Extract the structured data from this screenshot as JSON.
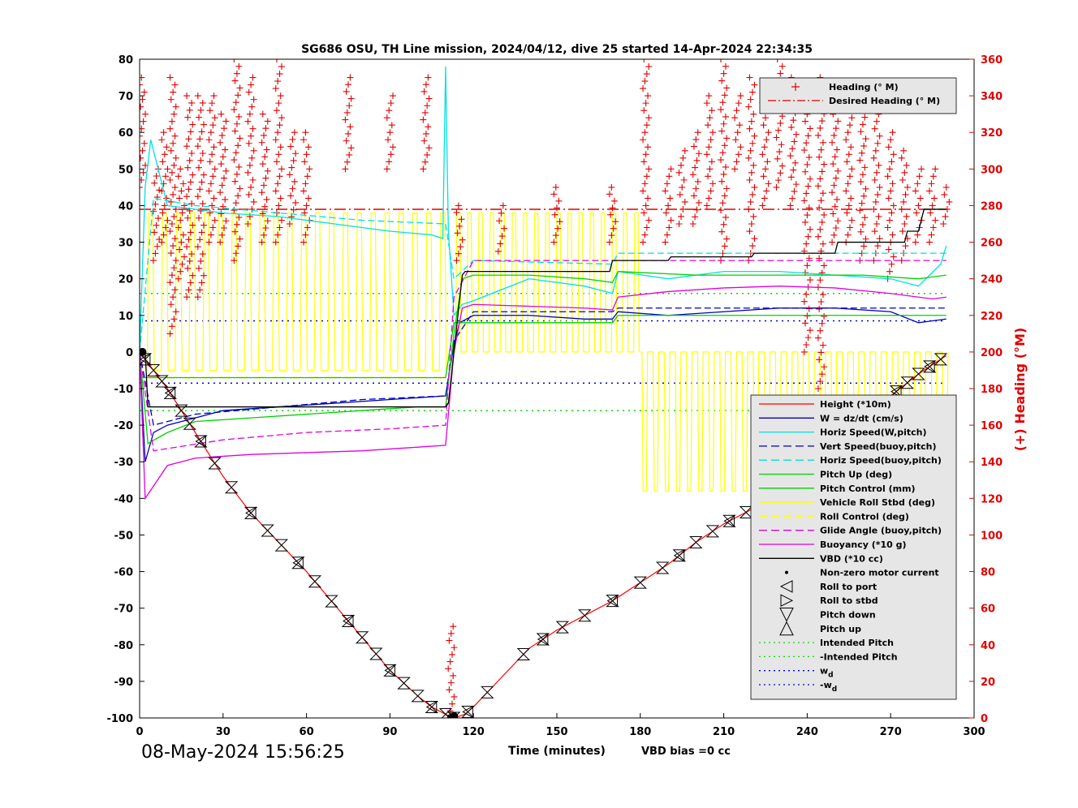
{
  "chart_data": {
    "type": "line",
    "title": "SG686 OSU, TH Line mission, 2024/04/12, dive 25 started 14-Apr-2024 22:34:35",
    "xlabel": "Time (minutes)",
    "ylabel": "",
    "y2label": "(+) Heading (°M)",
    "xlim": [
      0,
      300
    ],
    "ylim": [
      -100,
      80
    ],
    "y2lim": [
      0,
      360
    ],
    "xticks": [
      0,
      30,
      60,
      90,
      120,
      150,
      180,
      210,
      240,
      270,
      300
    ],
    "yticks": [
      80,
      70,
      60,
      50,
      40,
      30,
      20,
      10,
      0,
      -10,
      -20,
      -30,
      -40,
      -50,
      -60,
      -70,
      -80,
      -90,
      -100
    ],
    "y2ticks": [
      360,
      340,
      320,
      300,
      280,
      260,
      240,
      220,
      200,
      180,
      160,
      140,
      120,
      100,
      80,
      60,
      40,
      20,
      0
    ],
    "grid": false,
    "timestamp": "08-May-2024 15:56:25",
    "vbd_bias": "VBD bias =0 cc",
    "legend_top": {
      "placement": "top-right",
      "entries": [
        {
          "label": "Heading (° M)",
          "color": "#e00000",
          "marker": "plus"
        },
        {
          "label": "Desired Heading (° M)",
          "color": "#e00000",
          "style": "dashdot"
        }
      ]
    },
    "legend_bottom": {
      "placement": "bottom-right",
      "entries": [
        {
          "label": "Height (*10m)",
          "color": "#ff0000",
          "style": "solid"
        },
        {
          "label": "W = dz/dt (cm/s)",
          "color": "#0000c0",
          "style": "solid"
        },
        {
          "label": "Horiz Speed(W,pitch)",
          "color": "#00e0e0",
          "style": "solid"
        },
        {
          "label": "Vert Speed(buoy,pitch)",
          "color": "#0000c0",
          "style": "dash"
        },
        {
          "label": "Horiz Speed(buoy,pitch)",
          "color": "#00e0e0",
          "style": "dash"
        },
        {
          "label": "Pitch Up (deg)",
          "color": "#00d000",
          "style": "solid"
        },
        {
          "label": "Pitch Control (mm)",
          "color": "#00d000",
          "style": "solid"
        },
        {
          "label": "Vehicle Roll Stbd (deg)",
          "color": "#ffff00",
          "style": "solid"
        },
        {
          "label": "Roll Control (deg)",
          "color": "#ffff00",
          "style": "dash"
        },
        {
          "label": "Glide Angle (buoy,pitch)",
          "color": "#e000e0",
          "style": "dash"
        },
        {
          "label": "Buoyancy (*10 g)",
          "color": "#e000e0",
          "style": "solid"
        },
        {
          "label": "VBD (*10 cc)",
          "color": "#000000",
          "style": "solid"
        },
        {
          "label": "Non-zero motor current",
          "color": "#000000",
          "marker": "dot"
        },
        {
          "label": "Roll to port",
          "color": "#000000",
          "marker": "tri-left"
        },
        {
          "label": "Roll to stbd",
          "color": "#000000",
          "marker": "tri-right"
        },
        {
          "label": "Pitch down",
          "color": "#000000",
          "marker": "tri-down"
        },
        {
          "label": "Pitch up",
          "color": "#000000",
          "marker": "tri-up"
        },
        {
          "label": "Intended Pitch",
          "color": "#00e000",
          "style": "dot"
        },
        {
          "label": "-Intended Pitch",
          "color": "#00e000",
          "style": "dot"
        },
        {
          "label": "w_d",
          "color": "#0000e0",
          "style": "dot"
        },
        {
          "label": "-w_d",
          "color": "#0000e0",
          "style": "dot"
        }
      ]
    },
    "series": [
      {
        "name": "Height (*10m)",
        "color": "#ff0000",
        "x": [
          0,
          2,
          5,
          10,
          20,
          30,
          40,
          50,
          60,
          70,
          80,
          90,
          100,
          105,
          110,
          113,
          117,
          120,
          130,
          140,
          150,
          160,
          170,
          180,
          190,
          200,
          210,
          220,
          230,
          240,
          250,
          260,
          270,
          280,
          290
        ],
        "y": [
          0,
          -2,
          -5,
          -10,
          -22,
          -34,
          -44,
          -52,
          -60,
          -69,
          -78,
          -87,
          -94,
          -97,
          -99,
          -100,
          -99,
          -97,
          -89,
          -81,
          -76,
          -72,
          -68,
          -63,
          -58,
          -52,
          -47,
          -43,
          -38,
          -33,
          -26,
          -19,
          -12,
          -6,
          -1
        ]
      },
      {
        "name": "W = dz/dt (cm/s)",
        "color": "#0000c0",
        "x": [
          0,
          2,
          5,
          10,
          20,
          30,
          50,
          70,
          90,
          110,
          113,
          115,
          120,
          140,
          160,
          170,
          172,
          190,
          210,
          230,
          250,
          270,
          280,
          290
        ],
        "y": [
          0,
          -30,
          -22,
          -20,
          -18,
          -16,
          -15,
          -14,
          -13,
          -12,
          2,
          8,
          10,
          10,
          9,
          9,
          11,
          10,
          11,
          12,
          12,
          11,
          8,
          9
        ]
      },
      {
        "name": "Horiz Speed(W,pitch)",
        "color": "#00e0e0",
        "x": [
          0,
          2,
          4,
          10,
          20,
          30,
          50,
          70,
          90,
          105,
          109,
          110,
          111,
          113,
          116,
          120,
          140,
          160,
          170,
          172,
          190,
          210,
          230,
          250,
          270,
          280,
          288,
          290
        ],
        "y": [
          0,
          45,
          58,
          40,
          39,
          38,
          37,
          35,
          33,
          32,
          31,
          78,
          33,
          10,
          13,
          14,
          20,
          18,
          16,
          22,
          20,
          22,
          22,
          21,
          20,
          18,
          24,
          29
        ]
      },
      {
        "name": "Vert Speed(buoy,pitch)",
        "color": "#0000c0",
        "dash": "8,4",
        "x": [
          0,
          5,
          20,
          50,
          80,
          110,
          113,
          120,
          170,
          172,
          290
        ],
        "y": [
          0,
          -20,
          -17,
          -15,
          -13,
          -12,
          3,
          11,
          11,
          12,
          12
        ]
      },
      {
        "name": "Horiz Speed(buoy,pitch)",
        "color": "#00e0e0",
        "dash": "8,4",
        "x": [
          0,
          5,
          20,
          50,
          80,
          110,
          113,
          120,
          170,
          172,
          290
        ],
        "y": [
          0,
          42,
          40,
          38,
          36,
          35,
          20,
          25,
          24,
          27,
          27
        ]
      },
      {
        "name": "Pitch Up (deg)",
        "color": "#00d000",
        "x": [
          0,
          3,
          10,
          20,
          40,
          60,
          80,
          100,
          110,
          113,
          116,
          120,
          140,
          160,
          170,
          172,
          200,
          230,
          260,
          280,
          290
        ],
        "y": [
          0,
          -25,
          -22,
          -19,
          -18,
          -17,
          -16,
          -15,
          -15,
          5,
          20,
          21,
          21,
          20,
          19,
          22,
          21,
          21,
          21,
          20,
          21
        ]
      },
      {
        "name": "Pitch Control (mm)",
        "color": "#00d000",
        "x": [
          0,
          110,
          113,
          120,
          170,
          172,
          290
        ],
        "y": [
          -7,
          -7,
          8,
          8,
          8,
          10,
          10
        ]
      },
      {
        "name": "Glide Angle (buoy,pitch)",
        "color": "#e000e0",
        "dash": "8,4",
        "x": [
          0,
          5,
          30,
          60,
          90,
          110,
          113,
          120,
          170,
          172,
          290
        ],
        "y": [
          0,
          -27,
          -24,
          -22,
          -21,
          -20,
          15,
          25,
          25,
          25,
          25
        ]
      },
      {
        "name": "Buoyancy (*10 g)",
        "color": "#e000e0",
        "x": [
          0,
          2,
          10,
          20,
          40,
          60,
          80,
          100,
          110,
          113,
          116,
          120,
          140,
          160,
          170,
          172,
          190,
          210,
          230,
          250,
          270,
          285,
          290
        ],
        "y": [
          0,
          -40,
          -31,
          -29,
          -28,
          -27.5,
          -27,
          -26,
          -25.5,
          0,
          12,
          13,
          12.5,
          12,
          11.5,
          15,
          16.5,
          17.5,
          18,
          17.5,
          16,
          14.5,
          15
        ]
      },
      {
        "name": "VBD (*10 cc)",
        "color": "#000000",
        "x": [
          0,
          2,
          3,
          20,
          40,
          60,
          80,
          100,
          110,
          111,
          116,
          117,
          169,
          170,
          190,
          191,
          220,
          221,
          250,
          251,
          275,
          276,
          280,
          282,
          290
        ],
        "y": [
          0,
          0,
          -15,
          -15,
          -15,
          -15,
          -15,
          -15,
          -15,
          -14,
          21,
          22,
          22,
          25,
          25,
          26,
          26,
          27,
          27,
          30,
          30,
          33,
          33,
          39,
          39
        ]
      }
    ],
    "reference_lines": [
      {
        "name": "Intended Pitch",
        "y": 16,
        "color": "#00e000"
      },
      {
        "name": "-Intended Pitch",
        "y": -16,
        "color": "#00e000"
      },
      {
        "name": "w_d",
        "y": 8.5,
        "color": "#0000e0"
      },
      {
        "name": "-w_d",
        "y": -8.5,
        "color": "#0000e0"
      },
      {
        "name": "Desired Heading (° M)",
        "y2": 278,
        "color": "#e00000"
      }
    ],
    "roll_series": {
      "name": "Vehicle Roll Stbd (deg)",
      "color": "#ffff00",
      "segments": [
        {
          "x_start": 2,
          "x_end": 110,
          "base": -5,
          "peak": 38,
          "period": 5
        },
        {
          "x_start": 113,
          "x_end": 180,
          "base": 0,
          "peak": 38,
          "period": 4
        },
        {
          "x_start": 180,
          "x_end": 290,
          "base": 0,
          "peak": -38,
          "period": 4
        }
      ]
    },
    "roll_control": {
      "name": "Roll Control (deg)",
      "color": "#ffff00",
      "x": [
        3,
        110
      ],
      "y": -7
    },
    "heading": {
      "name": "Heading (° M)",
      "color": "#e00000",
      "clusters": [
        {
          "x": 1,
          "y2_range": [
            290,
            350
          ]
        },
        {
          "x": 6,
          "y2_range": [
            250,
            300
          ]
        },
        {
          "x": 9,
          "y2_range": [
            260,
            320
          ]
        },
        {
          "x": 12,
          "y2_range": [
            210,
            350
          ]
        },
        {
          "x": 15,
          "y2_range": [
            240,
            300
          ]
        },
        {
          "x": 18,
          "y2_range": [
            230,
            340
          ]
        },
        {
          "x": 22,
          "y2_range": [
            230,
            340
          ]
        },
        {
          "x": 26,
          "y2_range": [
            260,
            340
          ]
        },
        {
          "x": 30,
          "y2_range": [
            260,
            330
          ]
        },
        {
          "x": 35,
          "y2_range": [
            250,
            360
          ]
        },
        {
          "x": 40,
          "y2_range": [
            270,
            350
          ]
        },
        {
          "x": 45,
          "y2_range": [
            260,
            330
          ]
        },
        {
          "x": 50,
          "y2_range": [
            260,
            360
          ]
        },
        {
          "x": 55,
          "y2_range": [
            270,
            320
          ]
        },
        {
          "x": 60,
          "y2_range": [
            260,
            320
          ]
        },
        {
          "x": 75,
          "y2_range": [
            300,
            350
          ]
        },
        {
          "x": 90,
          "y2_range": [
            300,
            340
          ]
        },
        {
          "x": 103,
          "y2_range": [
            300,
            350
          ]
        },
        {
          "x": 112,
          "y2_range": [
            0,
            50
          ]
        },
        {
          "x": 115,
          "y2_range": [
            250,
            280
          ]
        },
        {
          "x": 130,
          "y2_range": [
            255,
            280
          ]
        },
        {
          "x": 150,
          "y2_range": [
            260,
            290
          ]
        },
        {
          "x": 170,
          "y2_range": [
            260,
            290
          ]
        },
        {
          "x": 182,
          "y2_range": [
            260,
            360
          ]
        },
        {
          "x": 190,
          "y2_range": [
            260,
            300
          ]
        },
        {
          "x": 195,
          "y2_range": [
            270,
            310
          ]
        },
        {
          "x": 200,
          "y2_range": [
            270,
            320
          ]
        },
        {
          "x": 205,
          "y2_range": [
            280,
            340
          ]
        },
        {
          "x": 210,
          "y2_range": [
            250,
            360
          ]
        },
        {
          "x": 215,
          "y2_range": [
            300,
            340
          ]
        },
        {
          "x": 220,
          "y2_range": [
            250,
            350
          ]
        },
        {
          "x": 225,
          "y2_range": [
            280,
            340
          ]
        },
        {
          "x": 230,
          "y2_range": [
            290,
            360
          ]
        },
        {
          "x": 235,
          "y2_range": [
            280,
            350
          ]
        },
        {
          "x": 240,
          "y2_range": [
            200,
            330
          ]
        },
        {
          "x": 245,
          "y2_range": [
            180,
            350
          ]
        },
        {
          "x": 250,
          "y2_range": [
            260,
            330
          ]
        },
        {
          "x": 255,
          "y2_range": [
            260,
            340
          ]
        },
        {
          "x": 260,
          "y2_range": [
            250,
            340
          ]
        },
        {
          "x": 265,
          "y2_range": [
            250,
            330
          ]
        },
        {
          "x": 270,
          "y2_range": [
            240,
            320
          ]
        },
        {
          "x": 275,
          "y2_range": [
            250,
            310
          ]
        },
        {
          "x": 280,
          "y2_range": [
            260,
            300
          ]
        },
        {
          "x": 285,
          "y2_range": [
            260,
            300
          ]
        },
        {
          "x": 290,
          "y2_range": [
            270,
            290
          ]
        }
      ]
    },
    "pitch_markers": {
      "color": "#000000",
      "x": [
        2,
        5,
        8,
        11,
        15,
        18,
        22,
        27,
        33,
        40,
        46,
        51,
        57,
        63,
        69,
        75,
        80,
        85,
        90,
        95,
        100,
        105,
        110,
        113,
        118,
        125,
        138,
        145,
        152,
        160,
        170,
        180,
        188,
        194,
        200,
        206,
        212,
        218,
        225,
        232,
        240,
        248,
        256,
        262,
        268,
        272,
        276,
        280,
        284,
        288
      ]
    }
  }
}
